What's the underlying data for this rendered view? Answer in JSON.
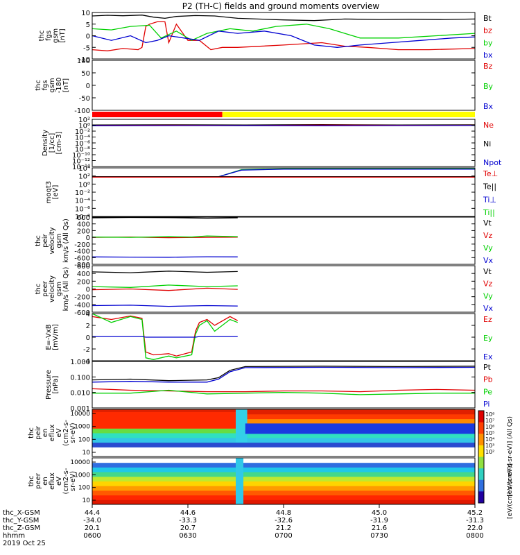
{
  "title": "P2 (TH-C) fields and ground moments overview",
  "colors": {
    "black": "#000000",
    "red": "#e00000",
    "green": "#00d000",
    "blue": "#0000d0",
    "yellow": "#ffff00",
    "mode_red": "#ff0000"
  },
  "chart_data": [
    {
      "id": "p1",
      "type": "line",
      "ylabel": [
        "thc",
        "fgs",
        "gsm",
        "[nT]"
      ],
      "ylim": [
        -10,
        10
      ],
      "yticks": [
        "10",
        "5",
        "0",
        "-5",
        "-10"
      ],
      "legend": [
        {
          "name": "Bt",
          "color": "black"
        },
        {
          "name": "bz",
          "color": "red"
        },
        {
          "name": "by",
          "color": "green"
        },
        {
          "name": "bx",
          "color": "blue"
        }
      ],
      "series": [
        {
          "name": "Bt",
          "color": "black",
          "x": [
            0,
            4,
            8,
            13,
            16,
            19,
            22,
            27,
            32,
            38,
            50,
            58,
            66,
            75,
            83,
            92,
            100
          ],
          "y": [
            8.5,
            8.8,
            8.6,
            8.9,
            8.0,
            7.5,
            8.3,
            8.7,
            8.5,
            7.5,
            6.8,
            6.5,
            7.2,
            7.0,
            7.1,
            7.0,
            7.2
          ]
        },
        {
          "name": "bz",
          "color": "red",
          "x": [
            0,
            4,
            8,
            12,
            13,
            14,
            15,
            17,
            19,
            20,
            22,
            25,
            28,
            31,
            34,
            38,
            50,
            60,
            66,
            72,
            80,
            88,
            100
          ],
          "y": [
            -6,
            -6.5,
            -5.5,
            -6,
            -5,
            4,
            5,
            6,
            6,
            -3,
            5,
            -2,
            -2,
            -6,
            -5,
            -5,
            -4,
            -3,
            -4.5,
            -5,
            -6,
            -6,
            -5.5
          ]
        },
        {
          "name": "by",
          "color": "green",
          "x": [
            0,
            5,
            10,
            15,
            18,
            22,
            26,
            30,
            36,
            42,
            48,
            56,
            62,
            70,
            80,
            90,
            100
          ],
          "y": [
            3,
            2.5,
            4,
            4.5,
            -1,
            2,
            -2,
            1,
            3,
            2,
            4,
            5,
            3,
            -1,
            -1,
            0,
            1
          ]
        },
        {
          "name": "bx",
          "color": "blue",
          "x": [
            0,
            5,
            10,
            14,
            17,
            20,
            24,
            28,
            33,
            38,
            45,
            52,
            58,
            64,
            70,
            78,
            86,
            94,
            100
          ],
          "y": [
            0,
            -2,
            0,
            -3,
            -2,
            0,
            -1,
            -2,
            2,
            1,
            2,
            0,
            -4,
            -5,
            -4,
            -3,
            -2,
            -1,
            -0.5
          ]
        }
      ]
    },
    {
      "id": "p2",
      "type": "line",
      "ylabel": [
        "thc",
        "fgs",
        "gsm",
        "-180",
        "[nT]"
      ],
      "ylim": [
        -140,
        110
      ],
      "yticks": [
        "100",
        "50",
        "0",
        "-50",
        "-100"
      ],
      "legend": [
        {
          "name": "Bz",
          "color": "red"
        },
        {
          "name": "By",
          "color": "green"
        },
        {
          "name": "Bx",
          "color": "blue"
        }
      ],
      "series": []
    },
    {
      "id": "p3",
      "type": "line",
      "ylabel": [
        "Density",
        "[1/cc]",
        "[cm-3]"
      ],
      "ylim": [
        -14,
        2
      ],
      "ylog": true,
      "yticks": [
        "10²",
        "10⁰",
        "10⁻²",
        "10⁻⁴",
        "10⁻⁶",
        "10⁻⁸",
        "10⁻¹⁰",
        "10⁻¹²",
        "10⁻¹⁴"
      ],
      "legend": [
        {
          "name": "Ne",
          "color": "red"
        },
        {
          "name": "Ni",
          "color": "black"
        },
        {
          "name": "Npot",
          "color": "blue"
        }
      ],
      "series": [
        {
          "name": "Ni",
          "color": "black",
          "x": [
            0,
            20,
            40,
            60,
            80,
            100
          ],
          "y": [
            0.1,
            0.15,
            0.1,
            0.2,
            0.1,
            0.15
          ]
        },
        {
          "name": "Ne",
          "color": "red",
          "x": [
            0,
            20,
            40,
            60,
            80,
            100
          ],
          "y": [
            -0.1,
            0,
            -0.1,
            0.05,
            -0.05,
            0
          ]
        },
        {
          "name": "Npot",
          "color": "blue",
          "x": [
            0,
            30,
            60,
            100
          ],
          "y": [
            -0.2,
            -0.15,
            -0.2,
            -0.1
          ]
        }
      ]
    },
    {
      "id": "p4",
      "type": "line",
      "ylabel": [
        "moqt3",
        "[eV]"
      ],
      "ylim": [
        -8,
        3
      ],
      "ylog": true,
      "yticks": [
        "10⁴",
        "10²",
        "10⁰",
        "10⁻²",
        "10⁻⁴",
        "10⁻⁶",
        "10⁻⁸"
      ],
      "legend": [
        {
          "name": "Te⊥",
          "color": "red"
        },
        {
          "name": "Te||",
          "color": "black"
        },
        {
          "name": "Ti⊥",
          "color": "blue"
        },
        {
          "name": "Ti||",
          "color": "green"
        }
      ],
      "series": [
        {
          "name": "Ti||",
          "color": "green",
          "x": [
            0,
            33,
            39,
            50,
            100
          ],
          "y": [
            1,
            1,
            2.6,
            2.8,
            2.8
          ]
        },
        {
          "name": "Ti⊥",
          "color": "blue",
          "x": [
            0,
            33,
            39,
            50,
            100
          ],
          "y": [
            1,
            1,
            2.5,
            2.7,
            2.7
          ]
        },
        {
          "name": "Te||",
          "color": "black",
          "x": [
            0,
            100
          ],
          "y": [
            1.0,
            1.0
          ]
        },
        {
          "name": "Te⊥",
          "color": "red",
          "x": [
            0,
            100
          ],
          "y": [
            0.9,
            0.9
          ]
        }
      ]
    },
    {
      "id": "p5",
      "type": "line",
      "ylabel": [
        "thc",
        "peir",
        "velocity",
        "gsm",
        "km/s (All Qs)"
      ],
      "ylim": [
        -800,
        600
      ],
      "yticks": [
        "600",
        "400",
        "200",
        "0",
        "-200",
        "-400",
        "-600",
        "-800"
      ],
      "legend": [
        {
          "name": "Vt",
          "color": "black"
        },
        {
          "name": "Vz",
          "color": "red"
        },
        {
          "name": "Vy",
          "color": "green"
        },
        {
          "name": "Vx",
          "color": "blue"
        }
      ],
      "series": [
        {
          "name": "Vt",
          "color": "black",
          "x": [
            0,
            10,
            20,
            30,
            38
          ],
          "y": [
            580,
            590,
            585,
            570,
            580
          ]
        },
        {
          "name": "Vz",
          "color": "red",
          "x": [
            0,
            10,
            20,
            30,
            38
          ],
          "y": [
            0,
            10,
            -10,
            0,
            5
          ]
        },
        {
          "name": "Vy",
          "color": "green",
          "x": [
            0,
            10,
            20,
            26,
            30,
            34,
            38
          ],
          "y": [
            10,
            0,
            20,
            10,
            40,
            30,
            20
          ]
        },
        {
          "name": "Vx",
          "color": "blue",
          "x": [
            0,
            10,
            20,
            30,
            38
          ],
          "y": [
            -580,
            -585,
            -590,
            -575,
            -580
          ]
        }
      ]
    },
    {
      "id": "p6",
      "type": "line",
      "ylabel": [
        "thc",
        "peer",
        "velocity",
        "gsm",
        "km/s (All Qs)"
      ],
      "ylim": [
        -600,
        600
      ],
      "yticks": [
        "600",
        "400",
        "200",
        "0",
        "-200",
        "-400",
        "-600"
      ],
      "legend": [
        {
          "name": "Vt",
          "color": "black"
        },
        {
          "name": "Vz",
          "color": "red"
        },
        {
          "name": "Vy",
          "color": "green"
        },
        {
          "name": "Vx",
          "color": "blue"
        }
      ],
      "series": [
        {
          "name": "Vt",
          "color": "black",
          "x": [
            0,
            10,
            20,
            30,
            38
          ],
          "y": [
            440,
            420,
            460,
            430,
            450
          ]
        },
        {
          "name": "Vz",
          "color": "red",
          "x": [
            0,
            10,
            20,
            30,
            38
          ],
          "y": [
            -20,
            0,
            -40,
            20,
            -10
          ]
        },
        {
          "name": "Vy",
          "color": "green",
          "x": [
            0,
            10,
            20,
            30,
            38
          ],
          "y": [
            60,
            40,
            100,
            60,
            80
          ]
        },
        {
          "name": "Vx",
          "color": "blue",
          "x": [
            0,
            10,
            20,
            30,
            38
          ],
          "y": [
            -430,
            -420,
            -450,
            -430,
            -440
          ]
        }
      ]
    },
    {
      "id": "p7",
      "type": "line",
      "ylabel": [
        "E=-VxB",
        "[mV/m]"
      ],
      "ylim": [
        -4,
        4
      ],
      "yticks": [
        "4",
        "2",
        "0",
        "-2",
        "-4"
      ],
      "legend": [
        {
          "name": "Ez",
          "color": "red"
        },
        {
          "name": "Ey",
          "color": "green"
        },
        {
          "name": "Ex",
          "color": "blue"
        }
      ],
      "series": [
        {
          "name": "Ez",
          "color": "red",
          "x": [
            0,
            5,
            10,
            13,
            14,
            16,
            20,
            22,
            26,
            27,
            28,
            30,
            32,
            36,
            38
          ],
          "y": [
            3.5,
            3.0,
            3.6,
            3.2,
            -2.5,
            -3.0,
            -2.8,
            -3.2,
            -2.5,
            1.0,
            2.5,
            3.0,
            2.0,
            3.5,
            2.8
          ]
        },
        {
          "name": "Ey",
          "color": "green",
          "x": [
            0,
            5,
            10,
            13,
            14,
            16,
            20,
            22,
            26,
            27,
            28,
            30,
            32,
            36,
            38
          ],
          "y": [
            4.0,
            2.5,
            3.5,
            3.0,
            -3.5,
            -3.8,
            -3.2,
            -3.5,
            -3.0,
            0.5,
            2.0,
            2.8,
            1.0,
            3.0,
            2.5
          ]
        },
        {
          "name": "Ex",
          "color": "blue",
          "x": [
            0,
            13,
            14,
            27,
            28,
            38
          ],
          "y": [
            0.1,
            0.1,
            0.0,
            0.0,
            0.1,
            0.1
          ]
        }
      ]
    },
    {
      "id": "p8",
      "type": "line",
      "ylabel": [
        "Pressure",
        "[nPa]"
      ],
      "ylim": [
        -3.05,
        0.1
      ],
      "ylog": true,
      "yticks": [
        "1.000",
        "0.100",
        "0.010",
        "0.001"
      ],
      "legend": [
        {
          "name": "Pt",
          "color": "black"
        },
        {
          "name": "Pb",
          "color": "red"
        },
        {
          "name": "Pe",
          "color": "green"
        },
        {
          "name": "Pi",
          "color": "blue"
        }
      ],
      "series": [
        {
          "name": "Pt",
          "color": "black",
          "x": [
            0,
            10,
            20,
            30,
            33,
            36,
            40,
            60,
            80,
            100
          ],
          "y": [
            -1.15,
            -1.1,
            -1.2,
            -1.15,
            -1.0,
            -0.5,
            -0.25,
            -0.22,
            -0.25,
            -0.22
          ]
        },
        {
          "name": "Pi",
          "color": "blue",
          "x": [
            0,
            10,
            20,
            30,
            33,
            36,
            40,
            60,
            80,
            100
          ],
          "y": [
            -1.3,
            -1.25,
            -1.3,
            -1.3,
            -1.1,
            -0.6,
            -0.32,
            -0.3,
            -0.32,
            -0.3
          ]
        },
        {
          "name": "Pb",
          "color": "red",
          "x": [
            0,
            10,
            20,
            30,
            40,
            50,
            60,
            70,
            80,
            90,
            100
          ],
          "y": [
            -1.75,
            -1.85,
            -1.9,
            -1.95,
            -1.95,
            -1.9,
            -1.9,
            -1.95,
            -1.85,
            -1.8,
            -1.85
          ]
        },
        {
          "name": "Pe",
          "color": "green",
          "x": [
            0,
            10,
            20,
            30,
            40,
            50,
            60,
            70,
            80,
            90,
            100
          ],
          "y": [
            -2.05,
            -2.05,
            -1.85,
            -2.1,
            -2.05,
            -2.0,
            -2.05,
            -2.15,
            -2.1,
            -2.05,
            -2.05
          ]
        }
      ]
    },
    {
      "id": "p9",
      "type": "heatmap",
      "ylabel": [
        "thc",
        "peir",
        "en",
        "eflux",
        "eV",
        "(cm2-s-",
        "sr-eV)"
      ],
      "yticks": [
        "10000",
        "1000",
        "100",
        "10"
      ]
    },
    {
      "id": "p10",
      "type": "heatmap",
      "ylabel": [
        "thc",
        "peer",
        "en",
        "eflux",
        "eV",
        "(cm2-s-",
        "sr-eV)"
      ],
      "yticks": [
        "10000",
        "1000",
        "100",
        "10"
      ]
    }
  ],
  "colorbar": {
    "ticks": [
      "10⁸",
      "10⁷",
      "10⁶",
      "10⁵",
      "10⁴",
      "10³",
      "10²"
    ],
    "label1": "[eV/(cm²-s-sr-eV)] (All Qs)",
    "label2": "[eV/(cm²-s-sr-eV)]"
  },
  "xaxis": {
    "row_labels": [
      "thc_X-GSM",
      "thc_Y-GSM",
      "thc_Z-GSM",
      "hhmm",
      "2019 Oct 25"
    ],
    "ticks": [
      {
        "pos": 0,
        "v": [
          "44.4",
          "-34.0",
          "20.1",
          "0600"
        ]
      },
      {
        "pos": 25,
        "v": [
          "44.6",
          "-33.3",
          "20.7",
          "0630"
        ]
      },
      {
        "pos": 50,
        "v": [
          "44.8",
          "-32.6",
          "21.2",
          "0700"
        ]
      },
      {
        "pos": 75,
        "v": [
          "45.0",
          "-31.9",
          "21.6",
          "0730"
        ]
      },
      {
        "pos": 100,
        "v": [
          "45.2",
          "-31.3",
          "22.0",
          "0800"
        ]
      }
    ]
  }
}
